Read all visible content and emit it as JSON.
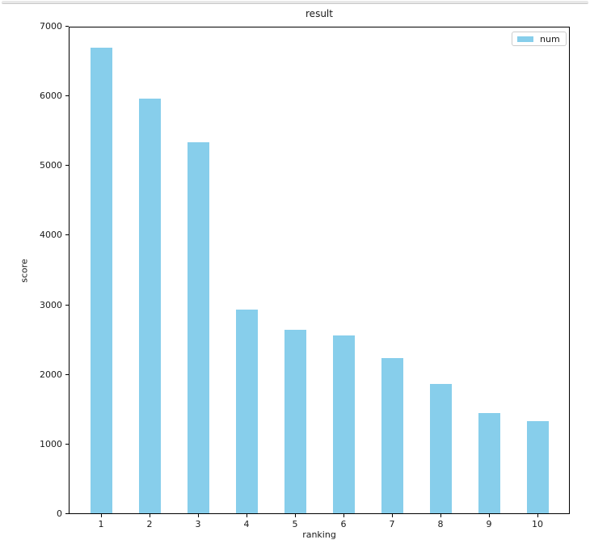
{
  "chart_data": {
    "type": "bar",
    "title": "result",
    "xlabel": "ranking",
    "ylabel": "score",
    "categories": [
      "1",
      "2",
      "3",
      "4",
      "5",
      "6",
      "7",
      "8",
      "9",
      "10"
    ],
    "series": [
      {
        "name": "num",
        "color": "#87CEEB",
        "values": [
          6690,
          5960,
          5330,
          2930,
          2630,
          2550,
          2230,
          1860,
          1440,
          1325
        ]
      }
    ],
    "ylim": [
      0,
      7000
    ],
    "yticks": [
      0,
      1000,
      2000,
      3000,
      4000,
      5000,
      6000,
      7000
    ],
    "grid": false,
    "legend": {
      "position": "upper right",
      "entries": [
        "num"
      ]
    }
  }
}
